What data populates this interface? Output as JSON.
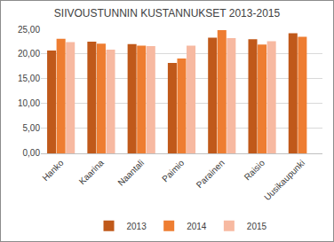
{
  "chart_data": {
    "type": "bar",
    "title": "SIIVOUSTUNNIN KUSTANNUKSET 2013-2015",
    "categories": [
      "Hanko",
      "Kaarina",
      "Naantali",
      "Paimio",
      "Parainen",
      "Raisio",
      "Uusikaupunki"
    ],
    "series": [
      {
        "name": "2013",
        "color": "#c0591a",
        "values": [
          20.7,
          22.5,
          22.0,
          18.2,
          23.3,
          23.0,
          24.2
        ]
      },
      {
        "name": "2014",
        "color": "#ee7d31",
        "values": [
          23.1,
          22.1,
          21.7,
          19.1,
          24.8,
          21.9,
          23.5
        ]
      },
      {
        "name": "2015",
        "color": "#f7b9a1",
        "values": [
          22.4,
          20.9,
          21.6,
          21.7,
          23.2,
          22.6,
          null
        ]
      }
    ],
    "ylim": [
      0,
      25
    ],
    "yticks": [
      {
        "value": 0,
        "label": "0,00"
      },
      {
        "value": 5,
        "label": "5,00"
      },
      {
        "value": 10,
        "label": "10,00"
      },
      {
        "value": 15,
        "label": "15,00"
      },
      {
        "value": 20,
        "label": "20,00"
      },
      {
        "value": 25,
        "label": "25,00"
      }
    ],
    "grid": true,
    "legend": "bottom"
  }
}
